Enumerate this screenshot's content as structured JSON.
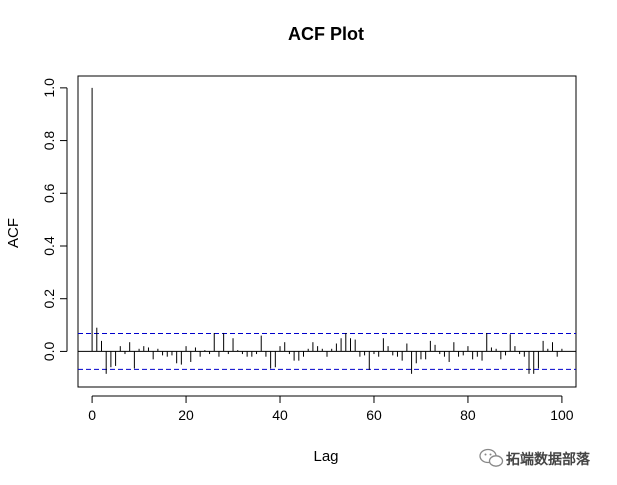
{
  "chart_data": {
    "type": "bar",
    "title": "ACF Plot",
    "xlabel": "Lag",
    "ylabel": "ACF",
    "xlim": [
      -3,
      103
    ],
    "ylim": [
      -0.135,
      1.045
    ],
    "x_ticks": [
      0,
      20,
      40,
      60,
      80,
      100
    ],
    "y_ticks": [
      0.0,
      0.2,
      0.4,
      0.6,
      0.8,
      1.0
    ],
    "x_tick_labels": [
      "0",
      "20",
      "40",
      "60",
      "80",
      "100"
    ],
    "y_tick_labels": [
      "0.0",
      "0.2",
      "0.4",
      "0.6",
      "0.8",
      "1.0"
    ],
    "confidence_bound": 0.068,
    "confidence_color": "#0000cc",
    "lags": [
      0,
      1,
      2,
      3,
      4,
      5,
      6,
      7,
      8,
      9,
      10,
      11,
      12,
      13,
      14,
      15,
      16,
      17,
      18,
      19,
      20,
      21,
      22,
      23,
      24,
      25,
      26,
      27,
      28,
      29,
      30,
      31,
      32,
      33,
      34,
      35,
      36,
      37,
      38,
      39,
      40,
      41,
      42,
      43,
      44,
      45,
      46,
      47,
      48,
      49,
      50,
      51,
      52,
      53,
      54,
      55,
      56,
      57,
      58,
      59,
      60,
      61,
      62,
      63,
      64,
      65,
      66,
      67,
      68,
      69,
      70,
      71,
      72,
      73,
      74,
      75,
      76,
      77,
      78,
      79,
      80,
      81,
      82,
      83,
      84,
      85,
      86,
      87,
      88,
      89,
      90,
      91,
      92,
      93,
      94,
      95,
      96,
      97,
      98,
      99,
      100
    ],
    "acf": [
      1.0,
      0.09,
      0.04,
      -0.085,
      -0.06,
      -0.055,
      0.02,
      -0.01,
      0.035,
      -0.065,
      0.01,
      0.02,
      0.015,
      -0.03,
      0.01,
      -0.015,
      -0.02,
      -0.015,
      -0.045,
      -0.05,
      0.02,
      -0.04,
      0.015,
      -0.02,
      0.005,
      -0.01,
      0.07,
      -0.02,
      0.07,
      -0.01,
      0.05,
      0.005,
      -0.01,
      -0.02,
      -0.02,
      -0.01,
      0.06,
      -0.02,
      -0.065,
      -0.06,
      0.02,
      0.035,
      -0.01,
      -0.035,
      -0.035,
      -0.02,
      0.01,
      0.035,
      0.02,
      0.01,
      -0.02,
      0.01,
      0.03,
      0.05,
      0.07,
      0.05,
      0.045,
      -0.02,
      -0.015,
      -0.07,
      -0.01,
      -0.02,
      0.05,
      0.02,
      -0.015,
      -0.02,
      -0.035,
      0.03,
      -0.085,
      -0.045,
      -0.03,
      -0.03,
      0.04,
      0.025,
      -0.01,
      -0.02,
      -0.04,
      0.035,
      -0.02,
      -0.015,
      0.02,
      -0.03,
      -0.02,
      -0.035,
      0.07,
      0.015,
      0.01,
      -0.03,
      -0.015,
      0.065,
      0.02,
      -0.01,
      -0.02,
      -0.085,
      -0.085,
      -0.065,
      0.04,
      0.01,
      0.035,
      -0.02,
      0.01
    ]
  },
  "watermark": {
    "text": "拓端数据部落",
    "icon": "wechat-icon"
  }
}
